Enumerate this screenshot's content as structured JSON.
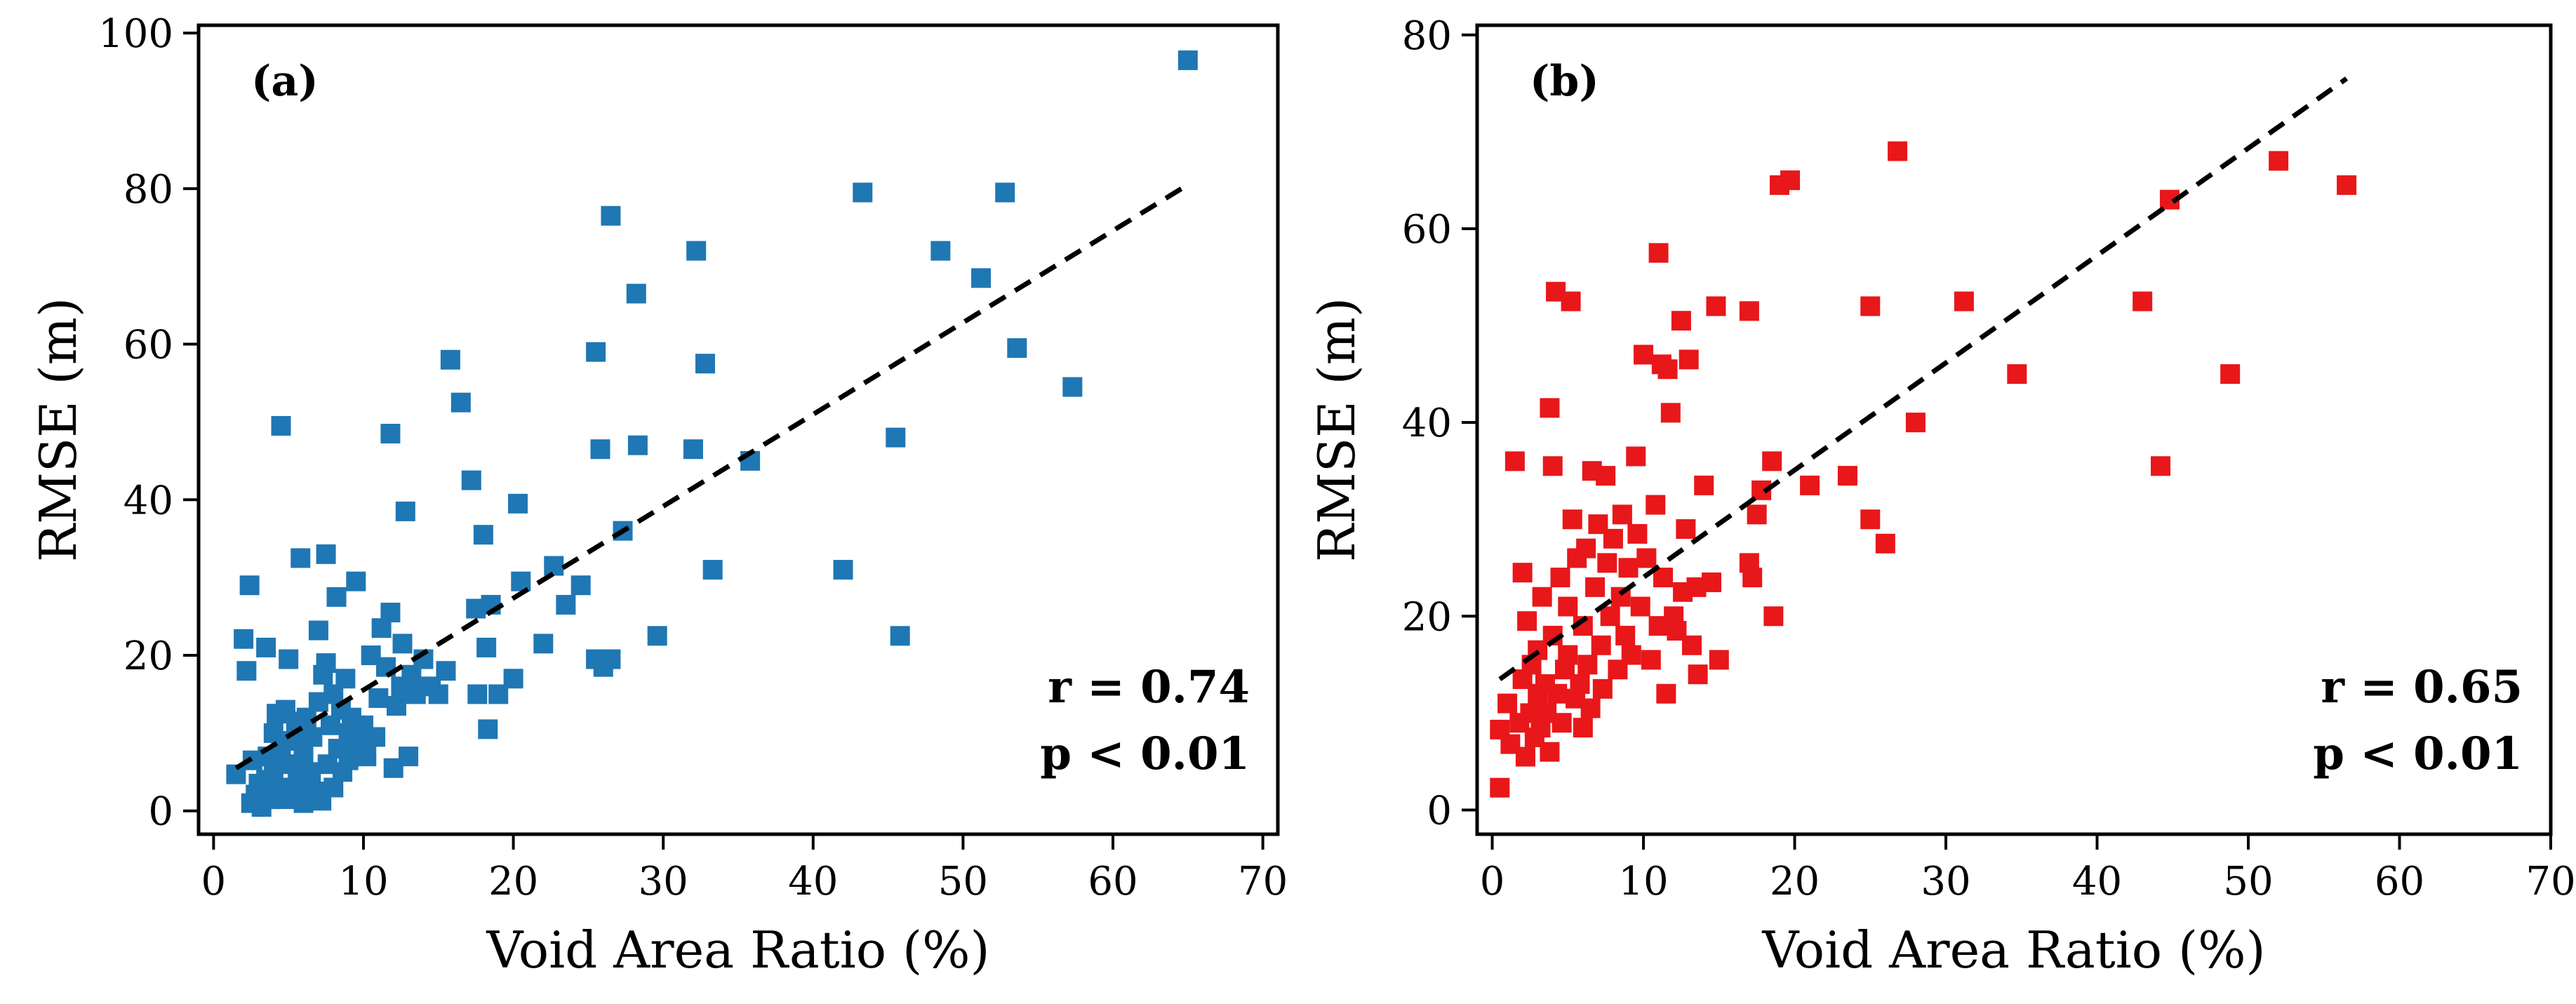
{
  "chart_data": [
    {
      "type": "scatter",
      "panel_label": "(a)",
      "xlabel": "Void Area Ratio (%)",
      "ylabel": "RMSE (m)",
      "xlim": [
        -1,
        71
      ],
      "ylim": [
        -3,
        101
      ],
      "xticks": [
        0,
        10,
        20,
        30,
        40,
        50,
        60,
        70
      ],
      "yticks": [
        0,
        20,
        40,
        60,
        80,
        100
      ],
      "marker_color": "#1f77b4",
      "stats": {
        "r": "r = 0.74",
        "p": "p < 0.01"
      },
      "trendline": {
        "x": [
          1.5,
          65
        ],
        "y": [
          5.5,
          80.5
        ]
      },
      "points": [
        [
          1.5,
          4.7
        ],
        [
          2,
          22.1
        ],
        [
          2.2,
          18
        ],
        [
          2.4,
          29
        ],
        [
          2.5,
          1
        ],
        [
          2.6,
          6.5
        ],
        [
          2.8,
          2.1
        ],
        [
          3,
          3.5
        ],
        [
          3.2,
          0.5
        ],
        [
          3.3,
          2
        ],
        [
          3.5,
          21
        ],
        [
          3.5,
          4
        ],
        [
          3.6,
          7
        ],
        [
          3.8,
          1.5
        ],
        [
          4,
          10
        ],
        [
          4,
          5.5
        ],
        [
          4.2,
          12.5
        ],
        [
          4.3,
          3
        ],
        [
          4.5,
          8
        ],
        [
          4.5,
          49.5
        ],
        [
          4.7,
          1.5
        ],
        [
          4.8,
          13
        ],
        [
          5,
          19.5
        ],
        [
          5,
          6
        ],
        [
          5.2,
          2
        ],
        [
          5.3,
          9
        ],
        [
          5.5,
          11.5
        ],
        [
          5.6,
          4.5
        ],
        [
          5.8,
          32.5
        ],
        [
          6,
          7
        ],
        [
          6,
          1
        ],
        [
          6.2,
          12
        ],
        [
          6.3,
          3.5
        ],
        [
          6.5,
          5
        ],
        [
          6.6,
          9.5
        ],
        [
          6.8,
          2.5
        ],
        [
          7,
          23.2
        ],
        [
          7,
          14
        ],
        [
          7.2,
          1.3
        ],
        [
          7.3,
          17.5
        ],
        [
          7.5,
          33
        ],
        [
          7.5,
          19
        ],
        [
          7.6,
          6
        ],
        [
          7.8,
          11
        ],
        [
          8,
          3
        ],
        [
          8,
          15
        ],
        [
          8.2,
          27.5
        ],
        [
          8.3,
          8
        ],
        [
          8.5,
          13
        ],
        [
          8.6,
          5
        ],
        [
          8.8,
          17
        ],
        [
          9,
          10
        ],
        [
          9,
          6.5
        ],
        [
          9.2,
          12
        ],
        [
          9.5,
          29.5
        ],
        [
          9.6,
          8.5
        ],
        [
          10,
          11
        ],
        [
          10.2,
          7
        ],
        [
          10.5,
          20
        ],
        [
          10.8,
          9.5
        ],
        [
          11,
          14.5
        ],
        [
          11.2,
          23.5
        ],
        [
          11.5,
          18.5
        ],
        [
          11.8,
          48.5
        ],
        [
          11.8,
          25.5
        ],
        [
          12,
          5.5
        ],
        [
          12.2,
          13.5
        ],
        [
          12.5,
          16
        ],
        [
          12.6,
          21.5
        ],
        [
          12.8,
          38.5
        ],
        [
          13,
          7
        ],
        [
          13.2,
          17.5
        ],
        [
          13.5,
          15
        ],
        [
          14,
          19.5
        ],
        [
          14.5,
          16
        ],
        [
          15,
          15
        ],
        [
          15.5,
          18
        ],
        [
          15.8,
          58
        ],
        [
          16.5,
          52.5
        ],
        [
          17.2,
          42.5
        ],
        [
          17.5,
          26
        ],
        [
          17.6,
          15
        ],
        [
          18,
          35.5
        ],
        [
          18.2,
          21
        ],
        [
          18.3,
          10.5
        ],
        [
          18.5,
          26.5
        ],
        [
          19,
          15
        ],
        [
          20,
          17
        ],
        [
          20.3,
          39.5
        ],
        [
          20.5,
          29.5
        ],
        [
          22,
          21.5
        ],
        [
          22.7,
          31.5
        ],
        [
          23.5,
          26.5
        ],
        [
          24.5,
          29
        ],
        [
          25.5,
          59
        ],
        [
          25.5,
          19.5
        ],
        [
          25.8,
          46.5
        ],
        [
          26,
          18.5
        ],
        [
          26.5,
          76.5
        ],
        [
          26.5,
          19.5
        ],
        [
          27.3,
          36
        ],
        [
          28.2,
          66.5
        ],
        [
          28.3,
          47
        ],
        [
          29.6,
          22.5
        ],
        [
          32,
          46.5
        ],
        [
          32.2,
          72
        ],
        [
          32.8,
          57.5
        ],
        [
          33.3,
          31
        ],
        [
          35.8,
          45
        ],
        [
          42,
          31
        ],
        [
          43.3,
          79.5
        ],
        [
          45.5,
          48
        ],
        [
          45.8,
          22.5
        ],
        [
          48.5,
          72
        ],
        [
          51.2,
          68.5
        ],
        [
          52.8,
          79.5
        ],
        [
          53.6,
          59.5
        ],
        [
          57.3,
          54.5
        ],
        [
          65,
          96.5
        ]
      ]
    },
    {
      "type": "scatter",
      "panel_label": "(b)",
      "xlabel": "Void Area Ratio (%)",
      "ylabel": "RMSE (m)",
      "xlim": [
        -1,
        70
      ],
      "ylim": [
        -2.5,
        81
      ],
      "xticks": [
        0,
        10,
        20,
        30,
        40,
        50,
        60,
        70
      ],
      "yticks": [
        0,
        20,
        40,
        60,
        80
      ],
      "marker_color": "#e8171a",
      "stats": {
        "r": "r = 0.65",
        "p": "p < 0.01"
      },
      "trendline": {
        "x": [
          0.5,
          56.5
        ],
        "y": [
          13.5,
          75.5
        ]
      },
      "points": [
        [
          0.5,
          2.3
        ],
        [
          0.5,
          8.3
        ],
        [
          1,
          11
        ],
        [
          1.2,
          6.8
        ],
        [
          1.5,
          36
        ],
        [
          1.8,
          9
        ],
        [
          2,
          24.5
        ],
        [
          2,
          13.5
        ],
        [
          2.2,
          5.5
        ],
        [
          2.3,
          19.5
        ],
        [
          2.5,
          10
        ],
        [
          2.6,
          15
        ],
        [
          2.8,
          7.5
        ],
        [
          3,
          12
        ],
        [
          3,
          16.5
        ],
        [
          3.2,
          8.5
        ],
        [
          3.3,
          22
        ],
        [
          3.5,
          13
        ],
        [
          3.6,
          10
        ],
        [
          3.8,
          41.5
        ],
        [
          3.8,
          6
        ],
        [
          4,
          18
        ],
        [
          4,
          35.5
        ],
        [
          4.2,
          53.5
        ],
        [
          4.3,
          12
        ],
        [
          4.5,
          24
        ],
        [
          4.6,
          9
        ],
        [
          4.8,
          14.5
        ],
        [
          5,
          21
        ],
        [
          5,
          16
        ],
        [
          5.2,
          52.5
        ],
        [
          5.3,
          30
        ],
        [
          5.5,
          11.5
        ],
        [
          5.6,
          26
        ],
        [
          5.8,
          13
        ],
        [
          6,
          19
        ],
        [
          6,
          8.5
        ],
        [
          6.2,
          27
        ],
        [
          6.3,
          15
        ],
        [
          6.5,
          10.5
        ],
        [
          6.6,
          35
        ],
        [
          6.8,
          23
        ],
        [
          7,
          29.5
        ],
        [
          7.2,
          17
        ],
        [
          7.3,
          12.5
        ],
        [
          7.5,
          34.5
        ],
        [
          7.6,
          25.5
        ],
        [
          7.8,
          20
        ],
        [
          8,
          28
        ],
        [
          8.3,
          14.5
        ],
        [
          8.5,
          22
        ],
        [
          8.6,
          30.5
        ],
        [
          8.8,
          18
        ],
        [
          9,
          25
        ],
        [
          9.2,
          16
        ],
        [
          9.5,
          36.5
        ],
        [
          9.6,
          28.5
        ],
        [
          9.8,
          21
        ],
        [
          10,
          47
        ],
        [
          10.2,
          26
        ],
        [
          10.5,
          15.5
        ],
        [
          10.8,
          31.5
        ],
        [
          11,
          57.5
        ],
        [
          11,
          19
        ],
        [
          11.2,
          46
        ],
        [
          11.3,
          24
        ],
        [
          11.5,
          12
        ],
        [
          11.6,
          45.5
        ],
        [
          11.8,
          41
        ],
        [
          12,
          20
        ],
        [
          12.2,
          18.5
        ],
        [
          12.5,
          50.5
        ],
        [
          12.6,
          22.5
        ],
        [
          12.8,
          29
        ],
        [
          13,
          46.5
        ],
        [
          13.2,
          17
        ],
        [
          13.5,
          23
        ],
        [
          13.6,
          14
        ],
        [
          14,
          33.5
        ],
        [
          14.5,
          23.5
        ],
        [
          14.8,
          52
        ],
        [
          15,
          15.5
        ],
        [
          17,
          51.5
        ],
        [
          17,
          25.5
        ],
        [
          17.2,
          24
        ],
        [
          17.5,
          30.5
        ],
        [
          17.8,
          33
        ],
        [
          18.5,
          36
        ],
        [
          18.6,
          20
        ],
        [
          19,
          64.5
        ],
        [
          19.7,
          65
        ],
        [
          21,
          33.5
        ],
        [
          23.5,
          34.5
        ],
        [
          25,
          52
        ],
        [
          25,
          30
        ],
        [
          26,
          27.5
        ],
        [
          26.8,
          68
        ],
        [
          28,
          40
        ],
        [
          31.2,
          52.5
        ],
        [
          34.7,
          45
        ],
        [
          43,
          52.5
        ],
        [
          44.2,
          35.5
        ],
        [
          44.8,
          63
        ],
        [
          48.8,
          45
        ],
        [
          52,
          67
        ],
        [
          56.5,
          64.5
        ]
      ]
    }
  ]
}
